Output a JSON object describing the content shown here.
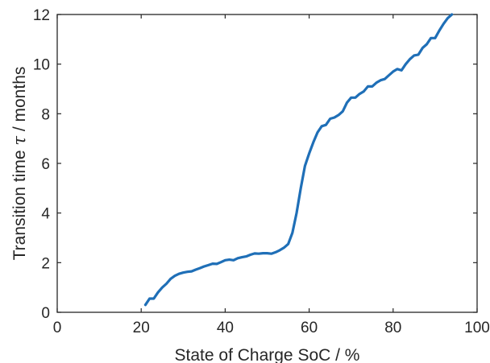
{
  "chart_data": {
    "type": "line",
    "xlabel": "State of Charge SoC  /  %",
    "ylabel_prefix": "Transition time ",
    "ylabel_symbol": "τ",
    "ylabel_suffix": "  /  months",
    "xlim": [
      0,
      100
    ],
    "ylim": [
      0,
      12
    ],
    "xticks": [
      0,
      20,
      40,
      60,
      80,
      100
    ],
    "yticks": [
      0,
      2,
      4,
      6,
      8,
      10,
      12
    ],
    "grid": false,
    "line_color": "#1f6fb7",
    "series": [
      {
        "x": [
          21,
          22,
          23,
          24,
          25,
          26,
          27,
          28,
          29,
          30,
          31,
          32,
          33,
          34,
          35,
          36,
          37,
          38,
          39,
          40,
          41,
          42,
          43,
          44,
          45,
          46,
          47,
          48,
          49,
          50,
          51,
          52,
          53,
          54,
          55,
          56,
          57,
          58,
          59,
          60,
          61,
          62,
          63,
          64,
          65,
          66,
          67,
          68,
          69,
          70,
          71,
          72,
          73,
          74,
          75,
          76,
          77,
          78,
          79,
          80,
          81,
          82,
          83,
          84,
          85,
          86,
          87,
          88,
          89,
          90,
          91,
          92,
          93,
          94
        ],
        "y": [
          0.3,
          0.55,
          0.55,
          0.8,
          1.0,
          1.15,
          1.35,
          1.47,
          1.55,
          1.6,
          1.63,
          1.65,
          1.72,
          1.78,
          1.85,
          1.9,
          1.96,
          1.95,
          2.02,
          2.1,
          2.12,
          2.1,
          2.18,
          2.22,
          2.25,
          2.32,
          2.37,
          2.36,
          2.38,
          2.38,
          2.36,
          2.42,
          2.5,
          2.6,
          2.75,
          3.2,
          4.0,
          5.0,
          5.9,
          6.4,
          6.85,
          7.25,
          7.5,
          7.55,
          7.8,
          7.85,
          7.95,
          8.1,
          8.45,
          8.65,
          8.65,
          8.8,
          8.9,
          9.1,
          9.1,
          9.25,
          9.35,
          9.4,
          9.55,
          9.7,
          9.8,
          9.75,
          10.0,
          10.2,
          10.35,
          10.38,
          10.65,
          10.8,
          11.05,
          11.05,
          11.35,
          11.62,
          11.85,
          12.0
        ]
      }
    ]
  }
}
